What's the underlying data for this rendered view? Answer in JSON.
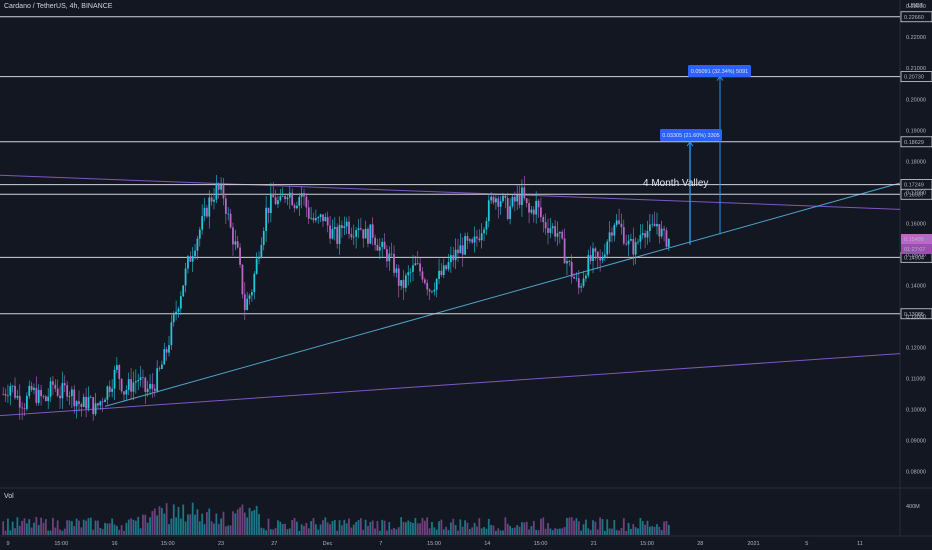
{
  "header": {
    "title": "Cardano / TetherUS, 4h, BINANCE",
    "unit": "USDT",
    "volume_label": "Vol"
  },
  "colors": {
    "background": "#131722",
    "up": "#26c6da",
    "down": "#ba68c8",
    "hline": "#d1d4dc",
    "trend_blue": "#4fa3c9",
    "trend_purple": "#7e57c2",
    "badge_blue": "#2962ff",
    "badge_price": "#ba68c8",
    "measure": "#2196f3"
  },
  "chart_data": {
    "type": "candlestick",
    "title": "Cardano / TetherUS, 4h, BINANCE",
    "ylim": [
      0.075,
      0.232
    ],
    "y_ticks": [
      "0.23000",
      "0.22000",
      "0.21000",
      "0.20000",
      "0.19000",
      "0.18000",
      "0.17000",
      "0.16000",
      "0.15000",
      "0.14000",
      "0.13000",
      "0.12000",
      "0.11000",
      "0.10000",
      "0.09000",
      "0.08000"
    ],
    "x_ticks": [
      "9",
      "15:00",
      "16",
      "15:00",
      "23",
      "27",
      "Dec",
      "7",
      "15:00",
      "14",
      "15:00",
      "21",
      "15:00",
      "28",
      "2021",
      "5",
      "11"
    ],
    "horizontal_levels": [
      "0.22660",
      "0.20730",
      "0.18629",
      "0.17249",
      "0.16937",
      "0.14904",
      "0.13085"
    ],
    "current_price": "0.15495",
    "countdown": "01:27:07",
    "annotations": {
      "pattern_label": "4 Month Valley",
      "measure_1": "0.03305 (21.60%) 3305",
      "measure_2": "0.05091 (32.34%) 5091"
    },
    "volume_axis_label": "400M",
    "path": [
      0.105,
      0.108,
      0.104,
      0.102,
      0.106,
      0.104,
      0.103,
      0.108,
      0.105,
      0.107,
      0.104,
      0.101,
      0.103,
      0.1,
      0.104,
      0.108,
      0.113,
      0.106,
      0.108,
      0.11,
      0.106,
      0.107,
      0.112,
      0.119,
      0.129,
      0.138,
      0.147,
      0.154,
      0.16,
      0.167,
      0.171,
      0.169,
      0.158,
      0.15,
      0.133,
      0.139,
      0.152,
      0.164,
      0.168,
      0.166,
      0.171,
      0.167,
      0.17,
      0.163,
      0.16,
      0.162,
      0.158,
      0.155,
      0.161,
      0.158,
      0.16,
      0.156,
      0.157,
      0.152,
      0.15,
      0.146,
      0.139,
      0.143,
      0.146,
      0.144,
      0.139,
      0.142,
      0.144,
      0.148,
      0.151,
      0.153,
      0.152,
      0.157,
      0.163,
      0.169,
      0.168,
      0.164,
      0.167,
      0.169,
      0.163,
      0.166,
      0.16,
      0.159,
      0.157,
      0.15,
      0.144,
      0.139,
      0.146,
      0.149,
      0.147,
      0.155,
      0.161,
      0.158,
      0.153,
      0.152,
      0.159,
      0.157,
      0.16,
      0.155
    ]
  }
}
